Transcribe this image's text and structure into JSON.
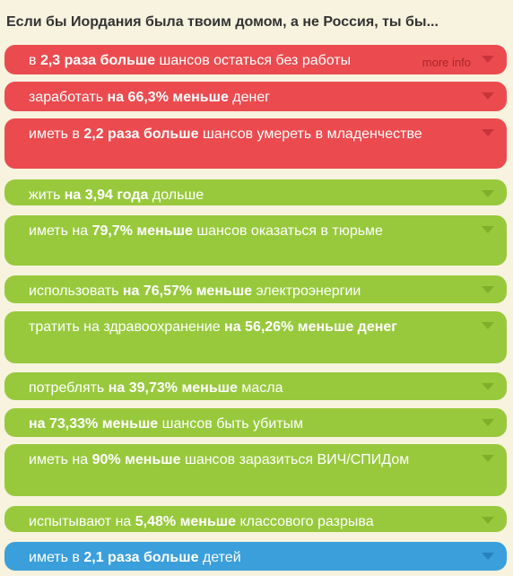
{
  "header": {
    "title": "Если бы Иордания была твоим домом, а не Россия, ты бы..."
  },
  "more_info_label": "more info",
  "facts": [
    {
      "color": "red",
      "parts": [
        {
          "t": "в "
        },
        {
          "t": "2,3 раза больше",
          "b": true
        },
        {
          "t": " шансов остаться без работы"
        }
      ]
    },
    {
      "color": "red",
      "parts": [
        {
          "t": "заработать "
        },
        {
          "t": "на 66,3% меньше",
          "b": true
        },
        {
          "t": " денег"
        }
      ]
    },
    {
      "color": "red",
      "parts": [
        {
          "t": "иметь в "
        },
        {
          "t": "2,2 раза больше",
          "b": true
        },
        {
          "t": " шансов умереть в младенчестве"
        }
      ]
    },
    {
      "color": "green",
      "parts": [
        {
          "t": "жить "
        },
        {
          "t": "на 3,94 года",
          "b": true
        },
        {
          "t": " дольше"
        }
      ]
    },
    {
      "color": "green",
      "parts": [
        {
          "t": "иметь на "
        },
        {
          "t": "79,7% меньше",
          "b": true
        },
        {
          "t": " шансов оказаться в тюрьме"
        }
      ]
    },
    {
      "color": "green",
      "parts": [
        {
          "t": "использовать "
        },
        {
          "t": "на 76,57% меньше",
          "b": true
        },
        {
          "t": " электроэнергии"
        }
      ]
    },
    {
      "color": "green",
      "parts": [
        {
          "t": "тратить на здравоохранение "
        },
        {
          "t": "на 56,26% меньше денег",
          "b": true
        }
      ]
    },
    {
      "color": "green",
      "parts": [
        {
          "t": "потреблять "
        },
        {
          "t": "на 39,73% меньше",
          "b": true
        },
        {
          "t": " масла"
        }
      ]
    },
    {
      "color": "green",
      "parts": [
        {
          "t": "на 73,33% меньше",
          "b": true
        },
        {
          "t": " шансов быть убитым"
        }
      ]
    },
    {
      "color": "green",
      "parts": [
        {
          "t": "иметь на "
        },
        {
          "t": "90% меньше",
          "b": true
        },
        {
          "t": " шансов заразиться ВИЧ/СПИДом"
        }
      ]
    },
    {
      "color": "green",
      "parts": [
        {
          "t": "испытывают на "
        },
        {
          "t": "5,48% меньше",
          "b": true
        },
        {
          "t": " классового разрыва"
        }
      ]
    },
    {
      "color": "blue",
      "parts": [
        {
          "t": "иметь в "
        },
        {
          "t": "2,1 раза больше",
          "b": true
        },
        {
          "t": " детей"
        }
      ]
    }
  ]
}
